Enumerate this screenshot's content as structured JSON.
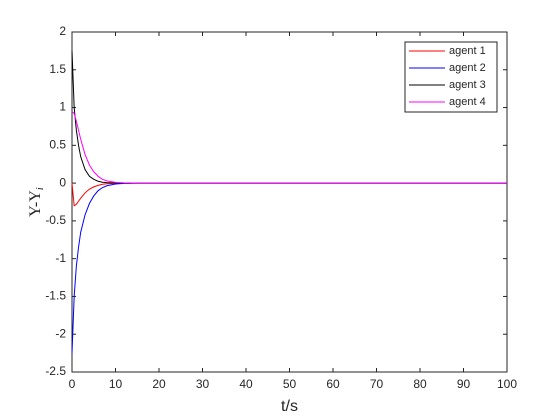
{
  "chart_data": {
    "type": "line",
    "xlabel": "t/s",
    "ylabel": "Y-Y",
    "ylabel_sub": "i",
    "x": [
      0,
      0.5,
      1,
      1.5,
      2,
      3,
      4,
      5,
      6,
      7,
      8,
      10,
      12,
      15,
      20,
      30,
      40,
      50,
      60,
      70,
      80,
      90,
      100
    ],
    "series": [
      {
        "name": "agent 1",
        "color": "#ff0000",
        "values": [
          0,
          -0.3,
          -0.28,
          -0.24,
          -0.2,
          -0.13,
          -0.08,
          -0.05,
          -0.03,
          -0.015,
          -0.008,
          -0.002,
          0,
          0,
          0,
          0,
          0,
          0,
          0,
          0,
          0,
          0,
          0
        ]
      },
      {
        "name": "agent 2",
        "color": "#0000ff",
        "values": [
          -2.25,
          -1.5,
          -1.1,
          -0.85,
          -0.65,
          -0.42,
          -0.27,
          -0.17,
          -0.1,
          -0.06,
          -0.035,
          -0.012,
          -0.004,
          0,
          0,
          0,
          0,
          0,
          0,
          0,
          0,
          0,
          0
        ]
      },
      {
        "name": "agent 3",
        "color": "#000000",
        "values": [
          1.75,
          1.0,
          0.7,
          0.5,
          0.35,
          0.18,
          0.09,
          0.05,
          0.025,
          0.012,
          0.006,
          0.001,
          0,
          0,
          0,
          0,
          0,
          0,
          0,
          0,
          0,
          0,
          0
        ]
      },
      {
        "name": "agent 4",
        "color": "#ff00ff",
        "values": [
          0.95,
          0.92,
          0.82,
          0.7,
          0.58,
          0.38,
          0.24,
          0.15,
          0.09,
          0.05,
          0.03,
          0.01,
          0.003,
          0,
          0,
          0,
          0,
          0,
          0,
          0,
          0,
          0,
          0
        ]
      }
    ],
    "xlim": [
      0,
      100
    ],
    "xticks": [
      0,
      10,
      20,
      30,
      40,
      50,
      60,
      70,
      80,
      90,
      100
    ],
    "ylim": [
      -2.5,
      2
    ],
    "yticks": [
      -2.5,
      -2,
      -1.5,
      -1,
      -0.5,
      0,
      0.5,
      1,
      1.5,
      2
    ],
    "grid": false,
    "legend": "top-right"
  }
}
